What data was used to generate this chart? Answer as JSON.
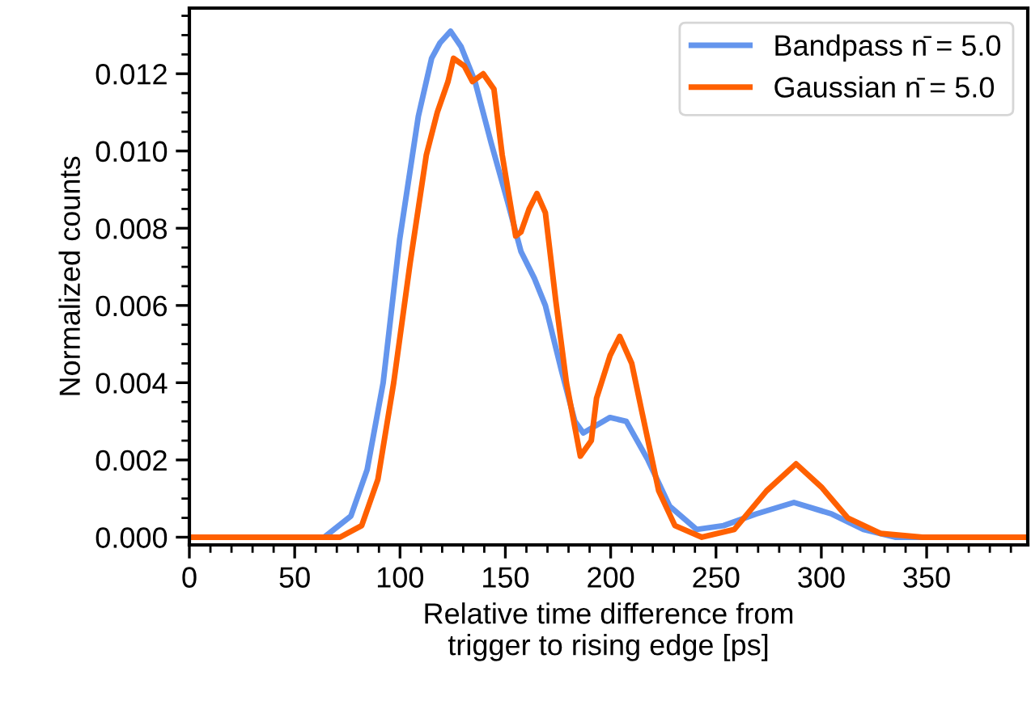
{
  "chart_data": {
    "type": "line",
    "xlabel": "Relative time difference from\ntrigger to rising edge [ps]",
    "ylabel": "Normalized counts",
    "xlim": [
      0,
      398
    ],
    "ylim": [
      -0.0002,
      0.0137
    ],
    "xticks": [
      0,
      50,
      100,
      150,
      200,
      250,
      300,
      350
    ],
    "yticks": [
      {
        "value": 0,
        "label": "0.000"
      },
      {
        "value": 0.002,
        "label": "0.002"
      },
      {
        "value": 0.004,
        "label": "0.004"
      },
      {
        "value": 0.006,
        "label": "0.006"
      },
      {
        "value": 0.008,
        "label": "0.008"
      },
      {
        "value": 0.01,
        "label": "0.010"
      },
      {
        "value": 0.012,
        "label": "0.012"
      }
    ],
    "legend": "top right",
    "grid": false,
    "marker": "none",
    "line_style": "solid",
    "series": [
      {
        "name": "Bandpass n̄ = 5.0",
        "color": "#6495ed",
        "x": [
          0,
          64,
          76.7,
          84.4,
          92,
          99.8,
          104.8,
          108.7,
          115,
          119,
          124,
          129,
          135.6,
          143.3,
          151,
          157.4,
          163.8,
          169,
          176.7,
          183,
          187,
          199.7,
          207.4,
          217.7,
          228,
          240.8,
          253.6,
          269,
          287,
          305,
          320,
          335,
          398
        ],
        "values": [
          0,
          0,
          0.00055,
          0.00175,
          0.004,
          0.0077,
          0.0095,
          0.0109,
          0.0124,
          0.0128,
          0.0131,
          0.0127,
          0.0118,
          0.0102,
          0.0087,
          0.0074,
          0.0067,
          0.006,
          0.0043,
          0.003,
          0.0027,
          0.0031,
          0.003,
          0.002,
          0.0008,
          0.0002,
          0.0003,
          0.0006,
          0.0009,
          0.0006,
          0.0002,
          0,
          0
        ]
      },
      {
        "name": "Gaussian n̄ = 5.0",
        "color": "#ff6000",
        "x": [
          0,
          71.5,
          81.8,
          89.5,
          97,
          104.8,
          112.5,
          117.7,
          122.8,
          125.4,
          130.5,
          134.4,
          139.5,
          144.6,
          148.5,
          154.9,
          157.4,
          161.3,
          165,
          169,
          174,
          179,
          185.6,
          190.8,
          193.3,
          199.7,
          204.3,
          210,
          215,
          222.8,
          230.5,
          243.3,
          258.7,
          274,
          288,
          300,
          312.5,
          328,
          348,
          398
        ],
        "values": [
          0,
          0,
          0.0003,
          0.0015,
          0.004,
          0.0071,
          0.0099,
          0.011,
          0.0118,
          0.0124,
          0.0122,
          0.0118,
          0.012,
          0.0116,
          0.0099,
          0.0078,
          0.0079,
          0.0085,
          0.0089,
          0.0084,
          0.0061,
          0.004,
          0.0021,
          0.0025,
          0.0036,
          0.0047,
          0.0052,
          0.0045,
          0.0032,
          0.0012,
          0.0003,
          0,
          0.0002,
          0.0012,
          0.0019,
          0.0013,
          0.0005,
          0.0001,
          0,
          0
        ]
      }
    ]
  }
}
